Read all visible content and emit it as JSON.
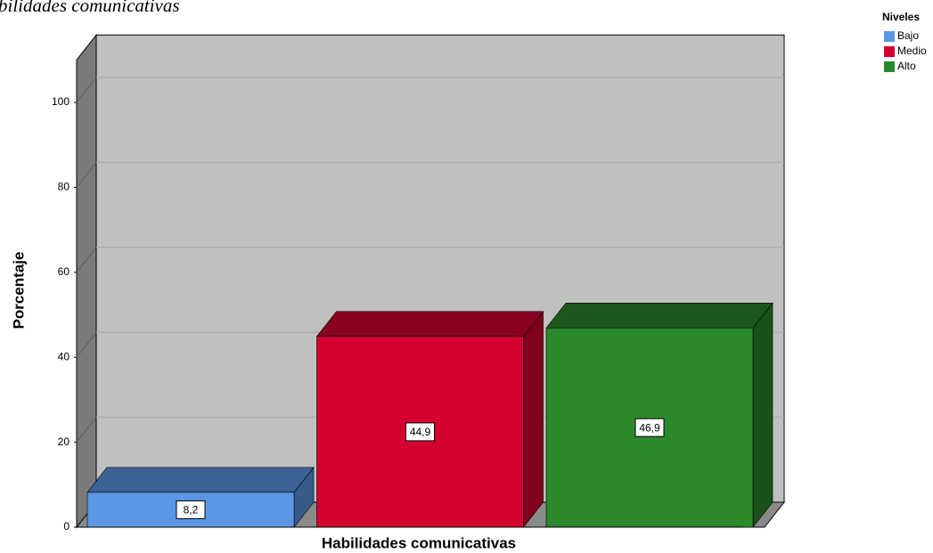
{
  "chart_data": {
    "type": "bar3d",
    "title": "bilidades comunicativas",
    "x_label": "Habilidades comunicativas",
    "y_label": "Porcentaje",
    "legend_title": "Niveles",
    "legend_position": "top-right",
    "series": [
      {
        "name": "Bajo",
        "color": "#5b97e4",
        "values": [
          8.2
        ],
        "value_labels": [
          "8,2"
        ]
      },
      {
        "name": "Medio",
        "color": "#d40030",
        "values": [
          44.9
        ],
        "value_labels": [
          "44,9"
        ]
      },
      {
        "name": "Alto",
        "color": "#2b882b",
        "values": [
          46.9
        ],
        "value_labels": [
          "46,9"
        ]
      }
    ],
    "ylim": [
      0,
      110
    ],
    "yticks": [
      0,
      20,
      40,
      60,
      80,
      100
    ],
    "grid": true
  }
}
